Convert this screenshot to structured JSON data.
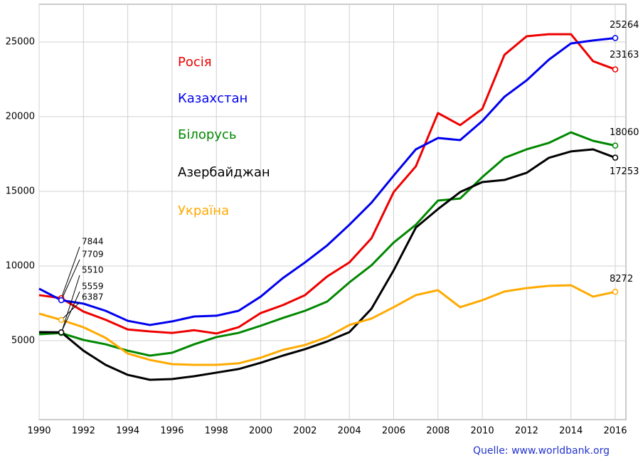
{
  "chart_data": {
    "type": "line",
    "x": [
      1990,
      1991,
      1992,
      1993,
      1994,
      1995,
      1996,
      1997,
      1998,
      1999,
      2000,
      2001,
      2002,
      2003,
      2004,
      2005,
      2006,
      2007,
      2008,
      2009,
      2010,
      2011,
      2012,
      2013,
      2014,
      2015,
      2016
    ],
    "series": [
      {
        "name": "Росія",
        "color": "#ee0000",
        "values": [
          8050,
          7844,
          6950,
          6400,
          5750,
          5620,
          5520,
          5700,
          5480,
          5900,
          6850,
          7380,
          8050,
          9300,
          10240,
          11860,
          14950,
          16670,
          20240,
          19430,
          20520,
          24140,
          25380,
          25520,
          25520,
          23710,
          23163
        ]
      },
      {
        "name": "Казахстан",
        "color": "#0000ee",
        "values": [
          8480,
          7709,
          7480,
          7000,
          6330,
          6050,
          6290,
          6620,
          6670,
          7000,
          7950,
          9190,
          10240,
          11380,
          12760,
          14240,
          16050,
          17810,
          18570,
          18430,
          19710,
          21330,
          22430,
          23810,
          24900,
          25100,
          25264
        ]
      },
      {
        "name": "Білорусь",
        "color": "#008800",
        "values": [
          5430,
          5510,
          5050,
          4760,
          4330,
          4000,
          4190,
          4760,
          5240,
          5520,
          6000,
          6520,
          7000,
          7620,
          8900,
          10050,
          11570,
          12760,
          14380,
          14520,
          15950,
          17240,
          17810,
          18240,
          18950,
          18380,
          18060
        ]
      },
      {
        "name": "Азербайджан",
        "color": "#000000",
        "values": [
          5570,
          5559,
          4330,
          3380,
          2710,
          2380,
          2430,
          2620,
          2860,
          3100,
          3520,
          4000,
          4430,
          4950,
          5570,
          7140,
          9710,
          12570,
          13810,
          14950,
          15620,
          15760,
          16240,
          17240,
          17670,
          17810,
          17253
        ]
      },
      {
        "name": "Україна",
        "color": "#ffaa00",
        "values": [
          6810,
          6387,
          5900,
          5190,
          4140,
          3710,
          3430,
          3380,
          3380,
          3480,
          3860,
          4380,
          4710,
          5240,
          6050,
          6480,
          7240,
          8050,
          8380,
          7240,
          7710,
          8290,
          8520,
          8670,
          8710,
          7950,
          8272
        ]
      }
    ],
    "xlim": [
      1990,
      2016
    ],
    "xticks": [
      1990,
      1992,
      1994,
      1996,
      1998,
      2000,
      2002,
      2004,
      2006,
      2008,
      2010,
      2012,
      2014,
      2016
    ],
    "ylim": [
      0,
      27500
    ],
    "yticks": [
      5000,
      10000,
      15000,
      20000,
      25000
    ],
    "grid": true,
    "source": "Quelle: www.worldbank.org"
  }
}
